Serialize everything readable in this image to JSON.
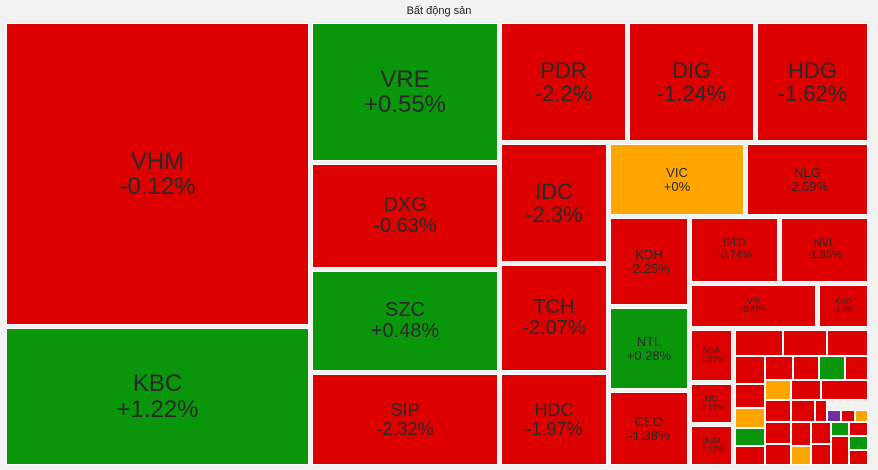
{
  "chart_data": {
    "type": "treemap",
    "title": "Bất động sản",
    "categories": [
      "VHM",
      "KBC",
      "VRE",
      "DXG",
      "SZC",
      "SIP",
      "PDR",
      "DIG",
      "HDG",
      "IDC",
      "TCH",
      "HDC",
      "VIC",
      "NLG",
      "KDH",
      "DTD",
      "NVL",
      "VPI",
      "KHG",
      "NTL",
      "CEO",
      "NHA",
      "IJC",
      "BCM"
    ],
    "values": [
      -0.12,
      1.22,
      0.55,
      -0.63,
      0.48,
      -2.32,
      -2.2,
      -1.24,
      -1.62,
      -2.3,
      -2.07,
      -1.97,
      0,
      -2.59,
      -2.25,
      -0.74,
      -1.85,
      -0.87,
      -1.9,
      0.28,
      -1.38,
      -1.57,
      -1.13,
      -1.17
    ],
    "value_labels": [
      "-0.12%",
      "+1.22%",
      "+0.55%",
      "-0.63%",
      "+0.48%",
      "-2.32%",
      "-2.2%",
      "-1.24%",
      "-1.62%",
      "-2.3%",
      "-2.07%",
      "-1.97%",
      "+0%",
      "-2.59%",
      "-2.25%",
      "-0.74%",
      "-1.85%",
      "-0.87%",
      "-1.9%",
      "+0.28%",
      "-1.38%",
      "-1.57%",
      "-1.13%",
      "-1.17%"
    ],
    "colors": {
      "down": "#dd0000",
      "up": "#0a960a",
      "flat": "#ffa500"
    }
  }
}
